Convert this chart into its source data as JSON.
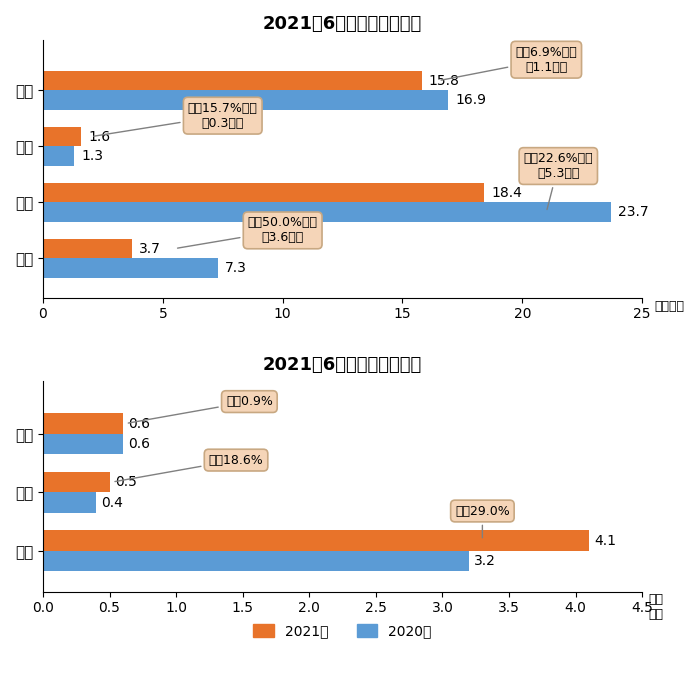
{
  "truck_title": "2021年6月货车分车型销量",
  "truck_categories": [
    "微型",
    "轻型",
    "中型",
    "重型"
  ],
  "truck_2021": [
    3.7,
    18.4,
    1.6,
    15.8
  ],
  "truck_2020": [
    7.3,
    23.7,
    1.3,
    16.9
  ],
  "truck_xlabel": "（万辆）",
  "truck_xlim": [
    0,
    25
  ],
  "truck_xticks": [
    0,
    5,
    10,
    15,
    20,
    25
  ],
  "bus_title": "2021年6月客车分车型销量",
  "bus_categories": [
    "轻型",
    "中型",
    "大型"
  ],
  "bus_2021": [
    4.1,
    0.5,
    0.6
  ],
  "bus_2020": [
    3.2,
    0.4,
    0.6
  ],
  "bus_xlabel": "（万\n辆）",
  "bus_xlim": [
    0,
    4.5
  ],
  "bus_xticks": [
    0.0,
    0.5,
    1.0,
    1.5,
    2.0,
    2.5,
    3.0,
    3.5,
    4.0,
    4.5
  ],
  "color_2021": "#E8732A",
  "color_2020": "#5B9BD5",
  "legend_2021": "2021年",
  "legend_2020": "2020年",
  "annotation_bbox_color": "#F5D5B8",
  "annotation_bbox_edge": "#C8A882",
  "bg_color": "#FFFFFF",
  "bar_height": 0.35
}
